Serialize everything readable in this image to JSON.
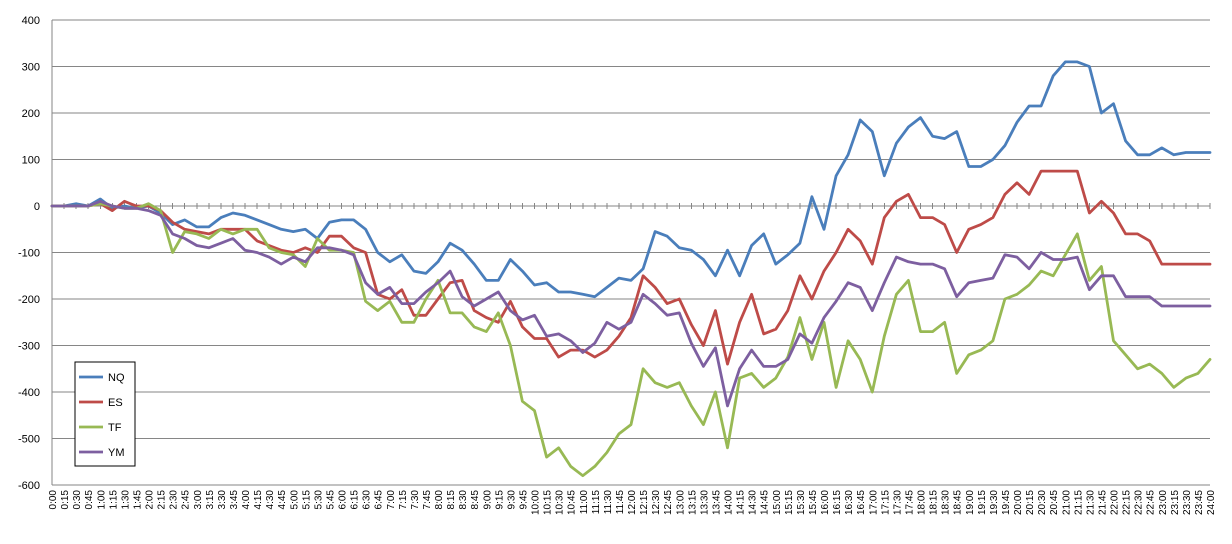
{
  "chart_data": {
    "type": "line",
    "title": "",
    "xlabel": "",
    "ylabel": "",
    "ylim": [
      -600,
      400
    ],
    "yticks": [
      400,
      300,
      200,
      100,
      0,
      -100,
      -200,
      -300,
      -400,
      -500,
      -600
    ],
    "grid": "horizontal",
    "legend_position": "bottom-left",
    "x": [
      "0:00",
      "0:15",
      "0:30",
      "0:45",
      "1:00",
      "1:15",
      "1:30",
      "1:45",
      "2:00",
      "2:15",
      "2:30",
      "2:45",
      "3:00",
      "3:15",
      "3:30",
      "3:45",
      "4:00",
      "4:15",
      "4:30",
      "4:45",
      "5:00",
      "5:15",
      "5:30",
      "5:45",
      "6:00",
      "6:15",
      "6:30",
      "6:45",
      "7:00",
      "7:15",
      "7:30",
      "7:45",
      "8:00",
      "8:15",
      "8:30",
      "8:45",
      "9:00",
      "9:15",
      "9:30",
      "9:45",
      "10:00",
      "10:15",
      "10:30",
      "10:45",
      "11:00",
      "11:15",
      "11:30",
      "11:45",
      "12:00",
      "12:15",
      "12:30",
      "12:45",
      "13:00",
      "13:15",
      "13:30",
      "13:45",
      "14:00",
      "14:15",
      "14:30",
      "14:45",
      "15:00",
      "15:15",
      "15:30",
      "15:45",
      "16:00",
      "16:15",
      "16:30",
      "16:45",
      "17:00",
      "17:15",
      "17:30",
      "17:45",
      "18:00",
      "18:15",
      "18:30",
      "18:45",
      "19:00",
      "19:15",
      "19:30",
      "19:45",
      "20:00",
      "20:15",
      "20:30",
      "20:45",
      "21:00",
      "21:15",
      "21:30",
      "21:45",
      "22:00",
      "22:15",
      "22:30",
      "22:45",
      "23:00",
      "23:15",
      "23:30",
      "23:45",
      "24:00"
    ],
    "series": [
      {
        "name": "NQ",
        "color": "#4a7ebb",
        "values": [
          0,
          0,
          5,
          0,
          15,
          -5,
          0,
          -5,
          0,
          -15,
          -40,
          -30,
          -45,
          -45,
          -25,
          -15,
          -20,
          -30,
          -40,
          -50,
          -55,
          -50,
          -70,
          -35,
          -30,
          -30,
          -50,
          -100,
          -120,
          -105,
          -140,
          -145,
          -120,
          -80,
          -95,
          -125,
          -160,
          -160,
          -115,
          -140,
          -170,
          -165,
          -185,
          -185,
          -190,
          -195,
          -175,
          -155,
          -160,
          -135,
          -55,
          -65,
          -90,
          -95,
          -115,
          -150,
          -95,
          -150,
          -85,
          -60,
          -125,
          -105,
          -80,
          20,
          -50,
          65,
          110,
          185,
          160,
          65,
          135,
          170,
          190,
          150,
          145,
          160,
          85,
          85,
          100,
          130,
          180,
          215,
          215,
          280,
          310,
          310,
          300,
          200,
          220,
          140,
          110,
          110,
          125,
          110,
          115,
          115,
          115
        ]
      },
      {
        "name": "ES",
        "color": "#be4b48",
        "values": [
          0,
          0,
          0,
          0,
          5,
          -10,
          10,
          0,
          0,
          -10,
          -35,
          -50,
          -55,
          -60,
          -50,
          -50,
          -50,
          -75,
          -85,
          -95,
          -100,
          -90,
          -100,
          -65,
          -65,
          -90,
          -100,
          -190,
          -200,
          -180,
          -235,
          -235,
          -200,
          -165,
          -160,
          -225,
          -240,
          -250,
          -205,
          -260,
          -285,
          -285,
          -325,
          -310,
          -310,
          -325,
          -310,
          -280,
          -240,
          -150,
          -175,
          -210,
          -200,
          -255,
          -300,
          -225,
          -340,
          -250,
          -190,
          -275,
          -265,
          -225,
          -150,
          -200,
          -140,
          -100,
          -50,
          -75,
          -125,
          -25,
          10,
          25,
          -25,
          -25,
          -40,
          -100,
          -50,
          -40,
          -25,
          25,
          50,
          25,
          75,
          75,
          75,
          75,
          -15,
          10,
          -15,
          -60,
          -60,
          -75,
          -125,
          -125,
          -125,
          -125,
          -125
        ]
      },
      {
        "name": "TF",
        "color": "#98b954",
        "values": [
          0,
          0,
          0,
          0,
          5,
          0,
          -5,
          -5,
          5,
          -10,
          -100,
          -55,
          -60,
          -70,
          -50,
          -60,
          -50,
          -50,
          -90,
          -100,
          -105,
          -130,
          -70,
          -95,
          -95,
          -100,
          -205,
          -225,
          -205,
          -250,
          -250,
          -200,
          -160,
          -230,
          -230,
          -260,
          -270,
          -230,
          -300,
          -420,
          -440,
          -540,
          -520,
          -560,
          -580,
          -560,
          -530,
          -490,
          -470,
          -350,
          -380,
          -390,
          -380,
          -430,
          -470,
          -400,
          -520,
          -370,
          -360,
          -390,
          -370,
          -325,
          -240,
          -330,
          -250,
          -390,
          -290,
          -330,
          -400,
          -280,
          -190,
          -160,
          -270,
          -270,
          -250,
          -360,
          -320,
          -310,
          -290,
          -200,
          -190,
          -170,
          -140,
          -150,
          -105,
          -60,
          -160,
          -130,
          -290,
          -320,
          -350,
          -340,
          -360,
          -390,
          -370,
          -360,
          -330
        ]
      },
      {
        "name": "YM",
        "color": "#7d5fa0",
        "values": [
          0,
          0,
          0,
          0,
          10,
          0,
          -5,
          -5,
          -10,
          -20,
          -60,
          -70,
          -85,
          -90,
          -80,
          -70,
          -95,
          -100,
          -110,
          -125,
          -110,
          -120,
          -90,
          -90,
          -95,
          -105,
          -165,
          -190,
          -175,
          -210,
          -210,
          -185,
          -165,
          -140,
          -195,
          -215,
          -200,
          -185,
          -225,
          -245,
          -235,
          -280,
          -275,
          -290,
          -315,
          -295,
          -250,
          -265,
          -250,
          -190,
          -210,
          -235,
          -230,
          -295,
          -345,
          -305,
          -430,
          -350,
          -310,
          -345,
          -345,
          -330,
          -275,
          -295,
          -240,
          -205,
          -165,
          -175,
          -225,
          -165,
          -110,
          -120,
          -125,
          -125,
          -135,
          -195,
          -165,
          -160,
          -155,
          -105,
          -110,
          -135,
          -100,
          -115,
          -115,
          -110,
          -180,
          -150,
          -150,
          -195,
          -195,
          -195,
          -215,
          -215,
          -215,
          -215,
          -215
        ]
      }
    ]
  }
}
